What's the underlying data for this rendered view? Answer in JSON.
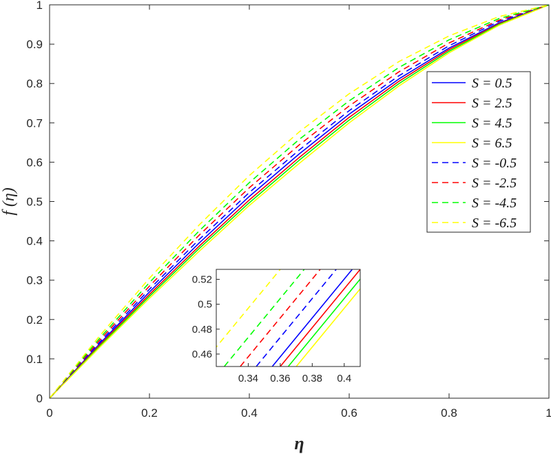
{
  "chart_data": [
    {
      "type": "line",
      "xlabel": "η",
      "ylabel": "f (η)",
      "xlim": [
        0,
        1
      ],
      "ylim": [
        0,
        1
      ],
      "xticks": [
        "0",
        "0.2",
        "0.4",
        "0.6",
        "0.8",
        "1"
      ],
      "yticks": [
        "0",
        "0.1",
        "0.2",
        "0.3",
        "0.4",
        "0.5",
        "0.6",
        "0.7",
        "0.8",
        "0.9",
        "1"
      ],
      "grid": false,
      "legend_position": "top-right",
      "x": [
        0,
        0.1,
        0.2,
        0.3,
        0.4,
        0.5,
        0.6,
        0.7,
        0.8,
        0.9,
        1.0
      ],
      "series": [
        {
          "name": "S = 0.5",
          "color": "#0000ff",
          "style": "solid",
          "values": [
            0,
            0.138,
            0.27,
            0.395,
            0.513,
            0.621,
            0.722,
            0.812,
            0.89,
            0.954,
            1.0
          ]
        },
        {
          "name": "S = 2.5",
          "color": "#ff0000",
          "style": "solid",
          "values": [
            0,
            0.135,
            0.264,
            0.387,
            0.504,
            0.612,
            0.714,
            0.806,
            0.886,
            0.952,
            1.0
          ]
        },
        {
          "name": "S = 4.5",
          "color": "#00ff00",
          "style": "solid",
          "values": [
            0,
            0.132,
            0.259,
            0.381,
            0.497,
            0.605,
            0.707,
            0.8,
            0.882,
            0.95,
            1.0
          ]
        },
        {
          "name": "S = 6.5",
          "color": "#ffff00",
          "style": "solid",
          "values": [
            0,
            0.129,
            0.254,
            0.374,
            0.49,
            0.597,
            0.7,
            0.794,
            0.878,
            0.948,
            1.0
          ]
        },
        {
          "name": "S = -0.5",
          "color": "#0000ff",
          "style": "dashed",
          "values": [
            0,
            0.142,
            0.277,
            0.404,
            0.523,
            0.631,
            0.731,
            0.82,
            0.896,
            0.958,
            1.0
          ]
        },
        {
          "name": "S = -2.5",
          "color": "#ff0000",
          "style": "dashed",
          "values": [
            0,
            0.147,
            0.285,
            0.415,
            0.535,
            0.644,
            0.743,
            0.83,
            0.903,
            0.961,
            1.0
          ]
        },
        {
          "name": "S = -4.5",
          "color": "#00ff00",
          "style": "dashed",
          "values": [
            0,
            0.152,
            0.294,
            0.426,
            0.548,
            0.658,
            0.756,
            0.841,
            0.911,
            0.965,
            1.0
          ]
        },
        {
          "name": "S = -6.5",
          "color": "#ffff00",
          "style": "dashed",
          "values": [
            0,
            0.158,
            0.305,
            0.441,
            0.566,
            0.677,
            0.774,
            0.856,
            0.921,
            0.97,
            1.0
          ]
        }
      ]
    },
    {
      "type": "line",
      "xlim": [
        0.32,
        0.41
      ],
      "ylim": [
        0.45,
        0.528
      ],
      "xticks": [
        "0.34",
        "0.36",
        "0.38",
        "0.4"
      ],
      "yticks": [
        "0.46",
        "0.48",
        "0.5",
        "0.52"
      ],
      "series": [
        {
          "color": "#0000ff",
          "style": "solid",
          "x": [
            0.355,
            0.405
          ],
          "values": [
            0.45,
            0.528
          ]
        },
        {
          "color": "#ff0000",
          "style": "solid",
          "x": [
            0.36,
            0.41
          ],
          "values": [
            0.45,
            0.528
          ]
        },
        {
          "color": "#00ff00",
          "style": "solid",
          "x": [
            0.365,
            0.415
          ],
          "values": [
            0.45,
            0.528
          ]
        },
        {
          "color": "#ffff00",
          "style": "solid",
          "x": [
            0.37,
            0.42
          ],
          "values": [
            0.45,
            0.528
          ]
        },
        {
          "color": "#0000ff",
          "style": "dashed",
          "x": [
            0.345,
            0.395
          ],
          "values": [
            0.45,
            0.528
          ]
        },
        {
          "color": "#ff0000",
          "style": "dashed",
          "x": [
            0.335,
            0.385
          ],
          "values": [
            0.45,
            0.528
          ]
        },
        {
          "color": "#00ff00",
          "style": "dashed",
          "x": [
            0.325,
            0.375
          ],
          "values": [
            0.45,
            0.528
          ]
        },
        {
          "color": "#ffff00",
          "style": "dashed",
          "x": [
            0.31,
            0.36
          ],
          "values": [
            0.45,
            0.528
          ]
        }
      ]
    }
  ]
}
